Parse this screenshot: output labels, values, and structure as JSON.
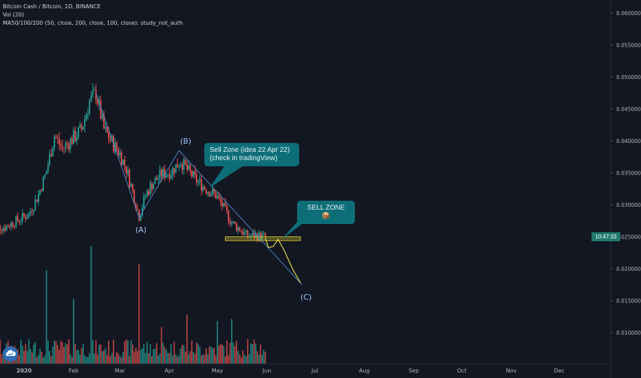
{
  "legend": {
    "symbol": "Bitcoin Cash / Bitcoin, 1D, BINANCE",
    "vol": "Vol (20)",
    "ma": "MA50/100/200 (50, close, 200, close, 100, close): study_not_auth"
  },
  "price_tag": "10:47:33",
  "annotations": {
    "callout_1_line1": "Sell Zone (idea 22 Apr 22)",
    "callout_1_line2": "(check in tradingView)",
    "callout_2": "SELL ZONE 📦",
    "wave_a": "(A)",
    "wave_b": "(B)",
    "wave_c": "(C)"
  },
  "colors": {
    "background": "#131722",
    "up": "#26a69a",
    "down": "#ef5350",
    "wave_line": "#4f89c6",
    "forecast": "#e8e04a",
    "zone": "#c9b92e",
    "callout": "#0e6e78"
  },
  "chart_data": {
    "type": "candlestick",
    "y_axis_ticks": [
      "0.060000",
      "0.055000",
      "0.050000",
      "0.045000",
      "0.040000",
      "0.035000",
      "0.030000",
      "0.025000",
      "0.020000",
      "0.015000",
      "0.010000"
    ],
    "y_axis_values": [
      0.06,
      0.055,
      0.05,
      0.045,
      0.04,
      0.035,
      0.03,
      0.025,
      0.02,
      0.015,
      0.01
    ],
    "ylim": [
      0.0058,
      0.0612
    ],
    "x_axis_ticks": [
      "2020",
      "Feb",
      "Mar",
      "Apr",
      "May",
      "Jun",
      "Jul",
      "Aug",
      "Sep",
      "Oct",
      "Nov",
      "Dec"
    ],
    "x_axis_dates": [
      "2020-01-01",
      "2020-02-01",
      "2020-03-01",
      "2020-04-01",
      "2020-05-01",
      "2020-06-01",
      "2020-07-01",
      "2020-08-01",
      "2020-09-01",
      "2020-10-01",
      "2020-11-01",
      "2020-12-01"
    ],
    "close_path": [
      [
        "2019-12-12",
        0.0266
      ],
      [
        "2019-12-20",
        0.0265
      ],
      [
        "2019-12-28",
        0.0276
      ],
      [
        "2020-01-04",
        0.0285
      ],
      [
        "2020-01-10",
        0.0316
      ],
      [
        "2020-01-15",
        0.0352
      ],
      [
        "2020-01-20",
        0.0408
      ],
      [
        "2020-01-25",
        0.0388
      ],
      [
        "2020-02-01",
        0.0405
      ],
      [
        "2020-02-06",
        0.0418
      ],
      [
        "2020-02-11",
        0.0462
      ],
      [
        "2020-02-15",
        0.0475
      ],
      [
        "2020-02-20",
        0.0418
      ],
      [
        "2020-02-25",
        0.0398
      ],
      [
        "2020-03-01",
        0.038
      ],
      [
        "2020-03-05",
        0.0356
      ],
      [
        "2020-03-09",
        0.0321
      ],
      [
        "2020-03-13",
        0.0282
      ],
      [
        "2020-03-17",
        0.0315
      ],
      [
        "2020-03-21",
        0.0332
      ],
      [
        "2020-03-27",
        0.0348
      ],
      [
        "2020-04-02",
        0.0352
      ],
      [
        "2020-04-08",
        0.0368
      ],
      [
        "2020-04-13",
        0.0352
      ],
      [
        "2020-04-18",
        0.0338
      ],
      [
        "2020-04-24",
        0.0325
      ],
      [
        "2020-04-30",
        0.0315
      ],
      [
        "2020-05-05",
        0.0295
      ],
      [
        "2020-05-10",
        0.0272
      ],
      [
        "2020-05-15",
        0.0262
      ],
      [
        "2020-05-20",
        0.0251
      ],
      [
        "2020-05-25",
        0.0252
      ],
      [
        "2020-05-31",
        0.025
      ]
    ],
    "series": [
      {
        "name": "Vol (20)",
        "x": [
          "2020-01-15",
          "2020-02-01",
          "2020-02-12",
          "2020-03-13",
          "2020-03-27",
          "2020-04-12",
          "2020-05-01",
          "2020-05-10",
          "2020-05-20"
        ],
        "values": [
          2.3,
          1.6,
          2.9,
          2.45,
          0.9,
          1.2,
          1.05,
          1.1,
          0.6
        ],
        "note": "relative volume"
      }
    ],
    "wave_points": {
      "A": [
        "2020-03-13",
        0.028
      ],
      "B": [
        "2020-04-07",
        0.0385
      ],
      "C": [
        "2020-06-23",
        0.0175
      ]
    },
    "sell_zone": {
      "x": [
        "2020-05-06",
        "2020-06-22"
      ],
      "y": [
        0.0244,
        0.025
      ]
    },
    "forecast_path": [
      [
        "2020-05-31",
        0.0248
      ],
      [
        "2020-06-02",
        0.0233
      ],
      [
        "2020-06-05",
        0.0235
      ],
      [
        "2020-06-08",
        0.0246
      ],
      [
        "2020-06-12",
        0.0228
      ],
      [
        "2020-06-17",
        0.02
      ],
      [
        "2020-06-22",
        0.0178
      ]
    ],
    "grid": false
  }
}
